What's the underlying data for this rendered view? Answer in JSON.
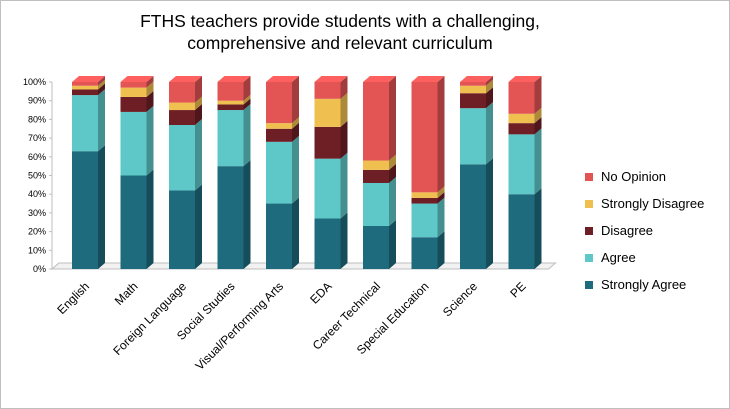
{
  "chart_data": {
    "type": "bar",
    "stacked": true,
    "title": "FTHS teachers provide students with a challenging, comprehensive and relevant curriculum",
    "categories": [
      "English",
      "Math",
      "Foreign Language",
      "Social Studies",
      "Visual/Performing Arts",
      "EDA",
      "Career Technical",
      "Special Education",
      "Science",
      "PE"
    ],
    "ylim": [
      0,
      100
    ],
    "yticks": [
      "0%",
      "10%",
      "20%",
      "30%",
      "40%",
      "50%",
      "60%",
      "70%",
      "80%",
      "90%",
      "100%"
    ],
    "series": [
      {
        "name": "Strongly Agree",
        "color": "#1f6b7e",
        "values": [
          63,
          50,
          42,
          55,
          35,
          27,
          23,
          17,
          56,
          40
        ]
      },
      {
        "name": "Agree",
        "color": "#5ec8c8",
        "values": [
          30,
          34,
          35,
          30,
          33,
          32,
          23,
          18,
          30,
          32
        ]
      },
      {
        "name": "Disagree",
        "color": "#6e1f26",
        "values": [
          3,
          8,
          8,
          3,
          7,
          17,
          7,
          3,
          8,
          6
        ]
      },
      {
        "name": "Strongly Disagree",
        "color": "#efc050",
        "values": [
          2,
          5,
          4,
          2,
          3,
          15,
          5,
          3,
          4,
          5
        ]
      },
      {
        "name": "No Opinion",
        "color": "#e35555",
        "values": [
          2,
          3,
          11,
          10,
          22,
          9,
          42,
          59,
          2,
          17
        ]
      }
    ],
    "legend_position": "right",
    "grid": false
  }
}
